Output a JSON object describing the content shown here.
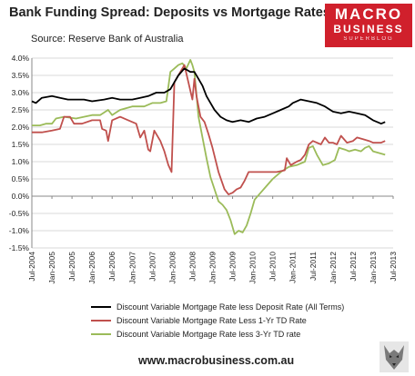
{
  "header": {
    "title": "Bank Funding Spread: Deposits vs Mortgage Rates",
    "source": "Source: Reserve Bank of Australia"
  },
  "logo": {
    "line1": "MACRO",
    "line2": "BUSINESS",
    "line3": "SUPERBLOG"
  },
  "footer": {
    "url": "www.macrobusiness.com.au"
  },
  "chart_data": {
    "type": "line",
    "title": "Bank Funding Spread: Deposits vs Mortgage Rates",
    "xlabel": "",
    "ylabel": "",
    "ylim": [
      -1.5,
      4.0
    ],
    "xlim": [
      2004.5,
      2013.5
    ],
    "y_ticks": [
      "4.0%",
      "3.5%",
      "3.0%",
      "2.5%",
      "2.0%",
      "1.5%",
      "1.0%",
      "0.5%",
      "0.0%",
      "-0.5%",
      "-1.0%",
      "-1.5%"
    ],
    "x_ticks": [
      "Jul-2004",
      "Jan-2005",
      "Jul-2005",
      "Jan-2006",
      "Jul-2006",
      "Jan-2007",
      "Jul-2007",
      "Jan-2008",
      "Jul-2008",
      "Jan-2009",
      "Jul-2009",
      "Jan-2010",
      "Jul-2010",
      "Jan-2011",
      "Jul-2011",
      "Jan-2012",
      "Jul-2012",
      "Jan-2013",
      "Jul-2013"
    ],
    "grid": "horizontal",
    "legend_position": "bottom",
    "series": [
      {
        "name": "Discount Variable Mortgage Rate less Deposit Rate (All Terms)",
        "color": "#000000",
        "points": [
          [
            2004.5,
            2.75
          ],
          [
            2004.6,
            2.7
          ],
          [
            2004.75,
            2.85
          ],
          [
            2005.0,
            2.9
          ],
          [
            2005.2,
            2.85
          ],
          [
            2005.4,
            2.8
          ],
          [
            2005.6,
            2.8
          ],
          [
            2005.8,
            2.8
          ],
          [
            2006.0,
            2.75
          ],
          [
            2006.3,
            2.8
          ],
          [
            2006.5,
            2.85
          ],
          [
            2006.7,
            2.8
          ],
          [
            2007.0,
            2.8
          ],
          [
            2007.2,
            2.85
          ],
          [
            2007.4,
            2.9
          ],
          [
            2007.6,
            3.0
          ],
          [
            2007.8,
            3.0
          ],
          [
            2007.95,
            3.1
          ],
          [
            2008.05,
            3.3
          ],
          [
            2008.15,
            3.5
          ],
          [
            2008.3,
            3.7
          ],
          [
            2008.45,
            3.6
          ],
          [
            2008.55,
            3.6
          ],
          [
            2008.65,
            3.4
          ],
          [
            2008.75,
            3.2
          ],
          [
            2008.85,
            2.9
          ],
          [
            2008.95,
            2.7
          ],
          [
            2009.05,
            2.5
          ],
          [
            2009.2,
            2.3
          ],
          [
            2009.35,
            2.2
          ],
          [
            2009.5,
            2.15
          ],
          [
            2009.7,
            2.2
          ],
          [
            2009.9,
            2.15
          ],
          [
            2010.1,
            2.25
          ],
          [
            2010.3,
            2.3
          ],
          [
            2010.5,
            2.4
          ],
          [
            2010.7,
            2.5
          ],
          [
            2010.9,
            2.6
          ],
          [
            2011.0,
            2.7
          ],
          [
            2011.2,
            2.8
          ],
          [
            2011.4,
            2.75
          ],
          [
            2011.6,
            2.7
          ],
          [
            2011.8,
            2.6
          ],
          [
            2012.0,
            2.45
          ],
          [
            2012.2,
            2.4
          ],
          [
            2012.4,
            2.45
          ],
          [
            2012.6,
            2.4
          ],
          [
            2012.8,
            2.35
          ],
          [
            2013.0,
            2.2
          ],
          [
            2013.1,
            2.15
          ],
          [
            2013.2,
            2.1
          ],
          [
            2013.3,
            2.15
          ]
        ]
      },
      {
        "name": "Discount Variable Mortgage Rate Less 1-Yr TD Rate",
        "color": "#c0504d",
        "points": [
          [
            2004.5,
            1.85
          ],
          [
            2004.75,
            1.85
          ],
          [
            2005.0,
            1.9
          ],
          [
            2005.2,
            1.95
          ],
          [
            2005.3,
            2.3
          ],
          [
            2005.45,
            2.3
          ],
          [
            2005.55,
            2.1
          ],
          [
            2005.75,
            2.1
          ],
          [
            2006.0,
            2.2
          ],
          [
            2006.2,
            2.2
          ],
          [
            2006.25,
            1.95
          ],
          [
            2006.35,
            1.9
          ],
          [
            2006.4,
            1.6
          ],
          [
            2006.5,
            2.2
          ],
          [
            2006.7,
            2.3
          ],
          [
            2006.9,
            2.2
          ],
          [
            2007.1,
            2.1
          ],
          [
            2007.2,
            1.7
          ],
          [
            2007.3,
            1.9
          ],
          [
            2007.4,
            1.35
          ],
          [
            2007.45,
            1.3
          ],
          [
            2007.55,
            1.9
          ],
          [
            2007.7,
            1.6
          ],
          [
            2007.8,
            1.3
          ],
          [
            2007.9,
            0.9
          ],
          [
            2007.98,
            0.7
          ],
          [
            2008.05,
            3.3
          ],
          [
            2008.15,
            3.5
          ],
          [
            2008.3,
            3.8
          ],
          [
            2008.4,
            3.3
          ],
          [
            2008.5,
            2.8
          ],
          [
            2008.55,
            3.4
          ],
          [
            2008.6,
            2.9
          ],
          [
            2008.7,
            2.3
          ],
          [
            2008.8,
            2.15
          ],
          [
            2008.9,
            1.8
          ],
          [
            2009.0,
            1.4
          ],
          [
            2009.15,
            0.7
          ],
          [
            2009.3,
            0.2
          ],
          [
            2009.4,
            0.05
          ],
          [
            2009.5,
            0.1
          ],
          [
            2009.6,
            0.2
          ],
          [
            2009.7,
            0.25
          ],
          [
            2009.8,
            0.45
          ],
          [
            2009.9,
            0.7
          ],
          [
            2010.0,
            0.7
          ],
          [
            2010.3,
            0.7
          ],
          [
            2010.6,
            0.7
          ],
          [
            2010.8,
            0.75
          ],
          [
            2010.85,
            1.1
          ],
          [
            2010.95,
            0.9
          ],
          [
            2011.1,
            1.0
          ],
          [
            2011.2,
            1.05
          ],
          [
            2011.3,
            1.2
          ],
          [
            2011.4,
            1.5
          ],
          [
            2011.5,
            1.6
          ],
          [
            2011.6,
            1.55
          ],
          [
            2011.7,
            1.5
          ],
          [
            2011.8,
            1.7
          ],
          [
            2011.9,
            1.55
          ],
          [
            2012.0,
            1.55
          ],
          [
            2012.1,
            1.5
          ],
          [
            2012.2,
            1.75
          ],
          [
            2012.35,
            1.55
          ],
          [
            2012.5,
            1.6
          ],
          [
            2012.6,
            1.7
          ],
          [
            2012.75,
            1.65
          ],
          [
            2012.9,
            1.6
          ],
          [
            2013.0,
            1.55
          ],
          [
            2013.2,
            1.55
          ],
          [
            2013.3,
            1.6
          ]
        ]
      },
      {
        "name": "Discount Variable Mortgage Rate less 3-Yr TD rate",
        "color": "#9bbb59",
        "points": [
          [
            2004.5,
            2.05
          ],
          [
            2004.7,
            2.05
          ],
          [
            2004.85,
            2.1
          ],
          [
            2005.0,
            2.1
          ],
          [
            2005.1,
            2.25
          ],
          [
            2005.3,
            2.3
          ],
          [
            2005.6,
            2.25
          ],
          [
            2005.8,
            2.3
          ],
          [
            2006.0,
            2.35
          ],
          [
            2006.2,
            2.35
          ],
          [
            2006.4,
            2.5
          ],
          [
            2006.5,
            2.35
          ],
          [
            2006.7,
            2.5
          ],
          [
            2007.0,
            2.6
          ],
          [
            2007.3,
            2.6
          ],
          [
            2007.5,
            2.7
          ],
          [
            2007.7,
            2.7
          ],
          [
            2007.85,
            2.75
          ],
          [
            2007.95,
            3.6
          ],
          [
            2008.05,
            3.7
          ],
          [
            2008.15,
            3.8
          ],
          [
            2008.25,
            3.85
          ],
          [
            2008.35,
            3.7
          ],
          [
            2008.45,
            3.95
          ],
          [
            2008.5,
            3.8
          ],
          [
            2008.55,
            3.6
          ],
          [
            2008.65,
            2.3
          ],
          [
            2008.75,
            1.7
          ],
          [
            2008.85,
            1.1
          ],
          [
            2008.95,
            0.55
          ],
          [
            2009.05,
            0.2
          ],
          [
            2009.15,
            -0.15
          ],
          [
            2009.25,
            -0.25
          ],
          [
            2009.35,
            -0.4
          ],
          [
            2009.45,
            -0.7
          ],
          [
            2009.55,
            -1.1
          ],
          [
            2009.65,
            -1.0
          ],
          [
            2009.75,
            -1.05
          ],
          [
            2009.85,
            -0.85
          ],
          [
            2009.95,
            -0.5
          ],
          [
            2010.05,
            -0.1
          ],
          [
            2010.2,
            0.1
          ],
          [
            2010.35,
            0.3
          ],
          [
            2010.5,
            0.5
          ],
          [
            2010.7,
            0.7
          ],
          [
            2010.9,
            0.85
          ],
          [
            2011.1,
            0.9
          ],
          [
            2011.3,
            1.0
          ],
          [
            2011.4,
            1.4
          ],
          [
            2011.5,
            1.45
          ],
          [
            2011.6,
            1.2
          ],
          [
            2011.75,
            0.9
          ],
          [
            2011.9,
            0.95
          ],
          [
            2012.05,
            1.05
          ],
          [
            2012.15,
            1.4
          ],
          [
            2012.3,
            1.35
          ],
          [
            2012.4,
            1.3
          ],
          [
            2012.55,
            1.35
          ],
          [
            2012.7,
            1.3
          ],
          [
            2012.8,
            1.4
          ],
          [
            2012.9,
            1.45
          ],
          [
            2013.0,
            1.3
          ],
          [
            2013.15,
            1.25
          ],
          [
            2013.3,
            1.2
          ]
        ]
      }
    ]
  }
}
